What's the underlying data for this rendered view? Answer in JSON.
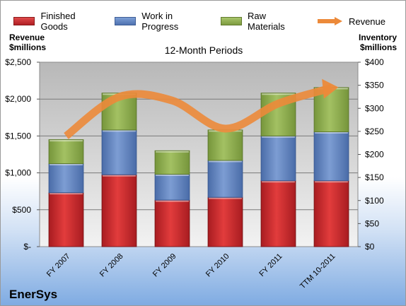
{
  "legend": {
    "finished": "Finished Goods",
    "wip": "Work in Progress",
    "raw": "Raw Materials",
    "revenue": "Revenue"
  },
  "left_axis_title": [
    "Revenue",
    "$millions"
  ],
  "right_axis_title": [
    "Inventory",
    "$millions"
  ],
  "plot_title": "12-Month Periods",
  "brand": "EnerSys",
  "colors": {
    "finished": "#c4262b",
    "wip": "#5b7fbd",
    "raw": "#8fae4e",
    "revenue": "#ec8a3a",
    "plot_bg": "#c0c0c0"
  },
  "chart_data": {
    "type": "bar",
    "stacked": true,
    "categories": [
      "FY 2007",
      "FY 2008",
      "FY 2009",
      "FY 2010",
      "FY 2011",
      "TTM 10-2011"
    ],
    "series": [
      {
        "name": "Finished Goods",
        "axis": "right",
        "values": [
          117,
          156,
          101,
          107,
          143,
          143
        ]
      },
      {
        "name": "Work in Progress",
        "axis": "right",
        "values": [
          63,
          97,
          56,
          80,
          97,
          106
        ]
      },
      {
        "name": "Raw Materials",
        "axis": "right",
        "values": [
          52,
          80,
          51,
          66,
          93,
          96
        ]
      },
      {
        "name": "Revenue",
        "type": "line",
        "axis": "left",
        "values": [
          1500,
          2030,
          1980,
          1600,
          1940,
          2150
        ]
      }
    ],
    "y_left": {
      "min": 0,
      "max": 2500,
      "step": 500,
      "ticks": [
        "$-",
        "$500",
        "$1,000",
        "$1,500",
        "$2,000",
        "$2,500"
      ]
    },
    "y_right": {
      "min": 0,
      "max": 400,
      "step": 50,
      "ticks": [
        "$0",
        "$50",
        "$100",
        "$150",
        "$200",
        "$250",
        "$300",
        "$350",
        "$400"
      ]
    },
    "grid": true,
    "legend_position": "top"
  }
}
